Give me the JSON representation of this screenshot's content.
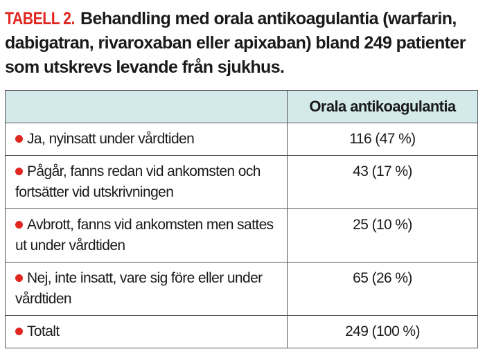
{
  "caption": {
    "label": "TABELL 2.",
    "text": "Behandling med orala antikoagulantia (warfarin, dabigatran, rivaroxaban eller apixaban) bland 249 patienter som utskrevs levande från sjukhus."
  },
  "table": {
    "header": [
      "",
      "Orala antikoagulantia"
    ],
    "rows": [
      {
        "label": "Ja, nyinsatt under vårdtiden",
        "value": "116 (47 %)"
      },
      {
        "label": "Pågår, fanns redan vid ankomsten och fortsätter vid utskrivningen",
        "value": "43 (17 %)"
      },
      {
        "label": "Avbrott, fanns vid ankomsten men sattes ut under vårdtiden",
        "value": "25 (10 %)"
      },
      {
        "label": "Nej, inte insatt, vare sig före eller under vårdtiden",
        "value": "65 (26 %)"
      },
      {
        "label": "Totalt",
        "value": "249 (100 %)"
      }
    ]
  },
  "colors": {
    "accent": "#e0261f",
    "header_bg": "#d4e9ea"
  }
}
